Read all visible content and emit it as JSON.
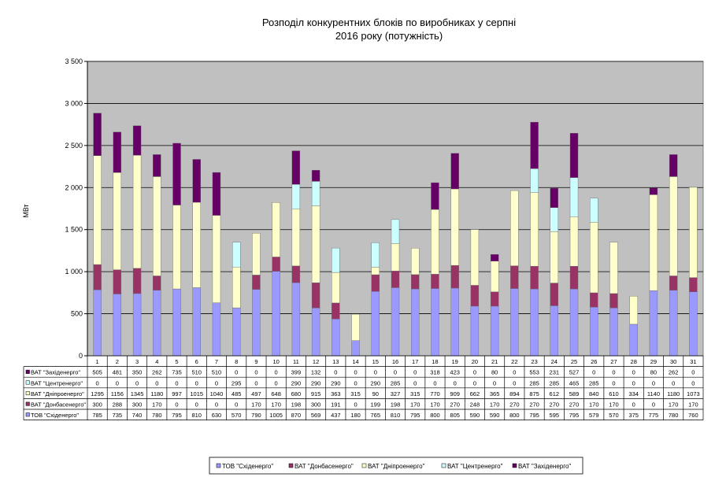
{
  "chart_data": {
    "type": "bar",
    "stacked": true,
    "title_lines": [
      "Розподіл конкурентних блоків по виробниках у серпні",
      "2016 року (потужність)"
    ],
    "ylabel": "МВт",
    "ylim": [
      0,
      3500
    ],
    "yticks": [
      0,
      500,
      1000,
      1500,
      2000,
      2500,
      3000,
      3500
    ],
    "ytick_labels": [
      "0",
      "500",
      "1 000",
      "1 500",
      "2 000",
      "2 500",
      "3 000",
      "3 500"
    ],
    "grid": true,
    "legend_position": "bottom",
    "categories": [
      "1",
      "2",
      "3",
      "4",
      "5",
      "6",
      "7",
      "8",
      "9",
      "10",
      "11",
      "12",
      "13",
      "14",
      "15",
      "16",
      "17",
      "18",
      "19",
      "20",
      "21",
      "22",
      "23",
      "24",
      "25",
      "26",
      "27",
      "28",
      "29",
      "30",
      "31"
    ],
    "series": [
      {
        "name": "ТОВ \"Східенерго\"",
        "color": "#9999ff",
        "values": [
          785,
          735,
          740,
          780,
          795,
          810,
          630,
          570,
          790,
          1005,
          870,
          569,
          437,
          180,
          765,
          810,
          795,
          800,
          805,
          590,
          590,
          800,
          795,
          595,
          795,
          579,
          570,
          375,
          775,
          780,
          760
        ]
      },
      {
        "name": "ВАТ \"Донбасенерго\"",
        "color": "#993366",
        "values": [
          300,
          288,
          300,
          170,
          0,
          0,
          0,
          0,
          170,
          170,
          198,
          300,
          191,
          0,
          199,
          198,
          170,
          170,
          270,
          248,
          170,
          270,
          270,
          270,
          270,
          170,
          170,
          0,
          0,
          170,
          170
        ]
      },
      {
        "name": "ВАТ \"Дніпроенерго\"",
        "color": "#ffffcc",
        "values": [
          1295,
          1156,
          1345,
          1180,
          997,
          1015,
          1040,
          485,
          497,
          648,
          680,
          915,
          363,
          315,
          90,
          327,
          315,
          770,
          909,
          662,
          365,
          894,
          875,
          612,
          589,
          840,
          610,
          334,
          1140,
          1180,
          1073
        ]
      },
      {
        "name": "ВАТ \"Центренерго\"",
        "color": "#ccffff",
        "values": [
          0,
          0,
          0,
          0,
          0,
          0,
          0,
          295,
          0,
          0,
          290,
          290,
          290,
          0,
          290,
          285,
          0,
          0,
          0,
          0,
          0,
          0,
          285,
          285,
          465,
          285,
          0,
          0,
          0,
          0,
          0
        ]
      },
      {
        "name": "ВАТ \"Західенерго\"",
        "color": "#660066",
        "values": [
          505,
          481,
          350,
          262,
          735,
          510,
          510,
          0,
          0,
          0,
          399,
          132,
          0,
          0,
          0,
          0,
          0,
          318,
          423,
          0,
          80,
          0,
          553,
          231,
          527,
          0,
          0,
          0,
          80,
          262,
          0
        ]
      }
    ],
    "table_row_order": [
      4,
      3,
      2,
      1,
      0
    ],
    "table_row_labels": [
      "ВАТ \"Західенерго\"",
      "ВАТ \"Центренерго\"",
      "ВАТ \"Дніпроенерго\"",
      "ВАТ \"Донбасенерго\"",
      "ТОВ \"Східенерго\""
    ]
  }
}
